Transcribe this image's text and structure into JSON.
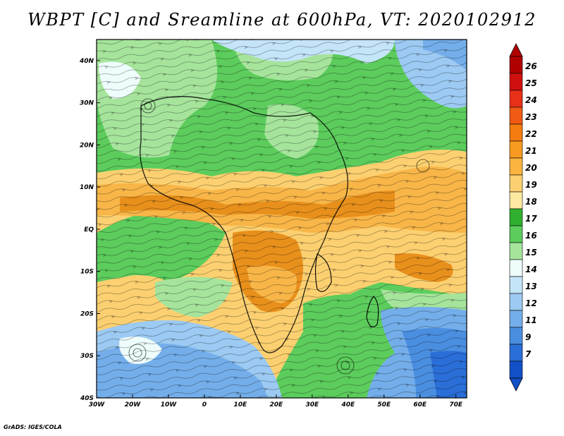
{
  "title": "WBPT [C] and Sreamline at 600hPa, VT: 2020102912",
  "footer": "GrADS: IGES/COLA",
  "colors": {
    "blue_dark": "#1f5fd6",
    "blue": "#4a8ee0",
    "blue_light": "#8cbcf0",
    "cyan_light": "#d6f2fa",
    "green_light": "#a6e49c",
    "green": "#5ccc5c",
    "yellow": "#fcdc80",
    "orange_light": "#f8b648",
    "orange": "#e8901c",
    "red": "#c80000"
  },
  "chart_data": {
    "type": "heatmap",
    "title": "WBPT [C] and Sreamline at 600hPa, VT: 2020102912",
    "x_axis": {
      "range": [
        -30,
        73
      ],
      "ticks": [
        -30,
        -20,
        -10,
        0,
        10,
        20,
        30,
        40,
        50,
        60,
        70
      ],
      "tick_labels": [
        "30W",
        "20W",
        "10W",
        "0",
        "10E",
        "20E",
        "30E",
        "40E",
        "50E",
        "60E",
        "70E"
      ]
    },
    "y_axis": {
      "range": [
        -40,
        45
      ],
      "ticks": [
        40,
        30,
        20,
        10,
        0,
        -10,
        -20,
        -30,
        -40
      ],
      "tick_labels": [
        "40N",
        "30N",
        "20N",
        "10N",
        "EQ",
        "10S",
        "20S",
        "30S",
        "40S"
      ]
    },
    "colorbar": {
      "labels": [
        "26",
        "25",
        "24",
        "23",
        "22",
        "21",
        "20",
        "19",
        "18",
        "17",
        "16",
        "15",
        "14",
        "13",
        "12",
        "11",
        "9",
        "7"
      ],
      "colors": [
        "#b00000",
        "#d01010",
        "#e83018",
        "#f05a14",
        "#f47c10",
        "#f89a20",
        "#fcb440",
        "#fcd070",
        "#fce8a0",
        "#30b030",
        "#5ccc5c",
        "#a6e49c",
        "#eefcfc",
        "#c4e4f8",
        "#9ccaf2",
        "#74aeea",
        "#4a8ee0",
        "#2a6ed8",
        "#1250c8"
      ]
    },
    "regions": [
      {
        "id": "north-green",
        "value": 17
      },
      {
        "id": "sahara-light",
        "value": 16
      },
      {
        "id": "med-blue",
        "value": 14
      },
      {
        "id": "equatorial-band",
        "value": 20
      },
      {
        "id": "central-africa",
        "value": 21
      },
      {
        "id": "south-atlantic",
        "value": 17
      },
      {
        "id": "south-blue",
        "value": 12
      },
      {
        "id": "indian-ocean",
        "value": 17
      }
    ]
  }
}
